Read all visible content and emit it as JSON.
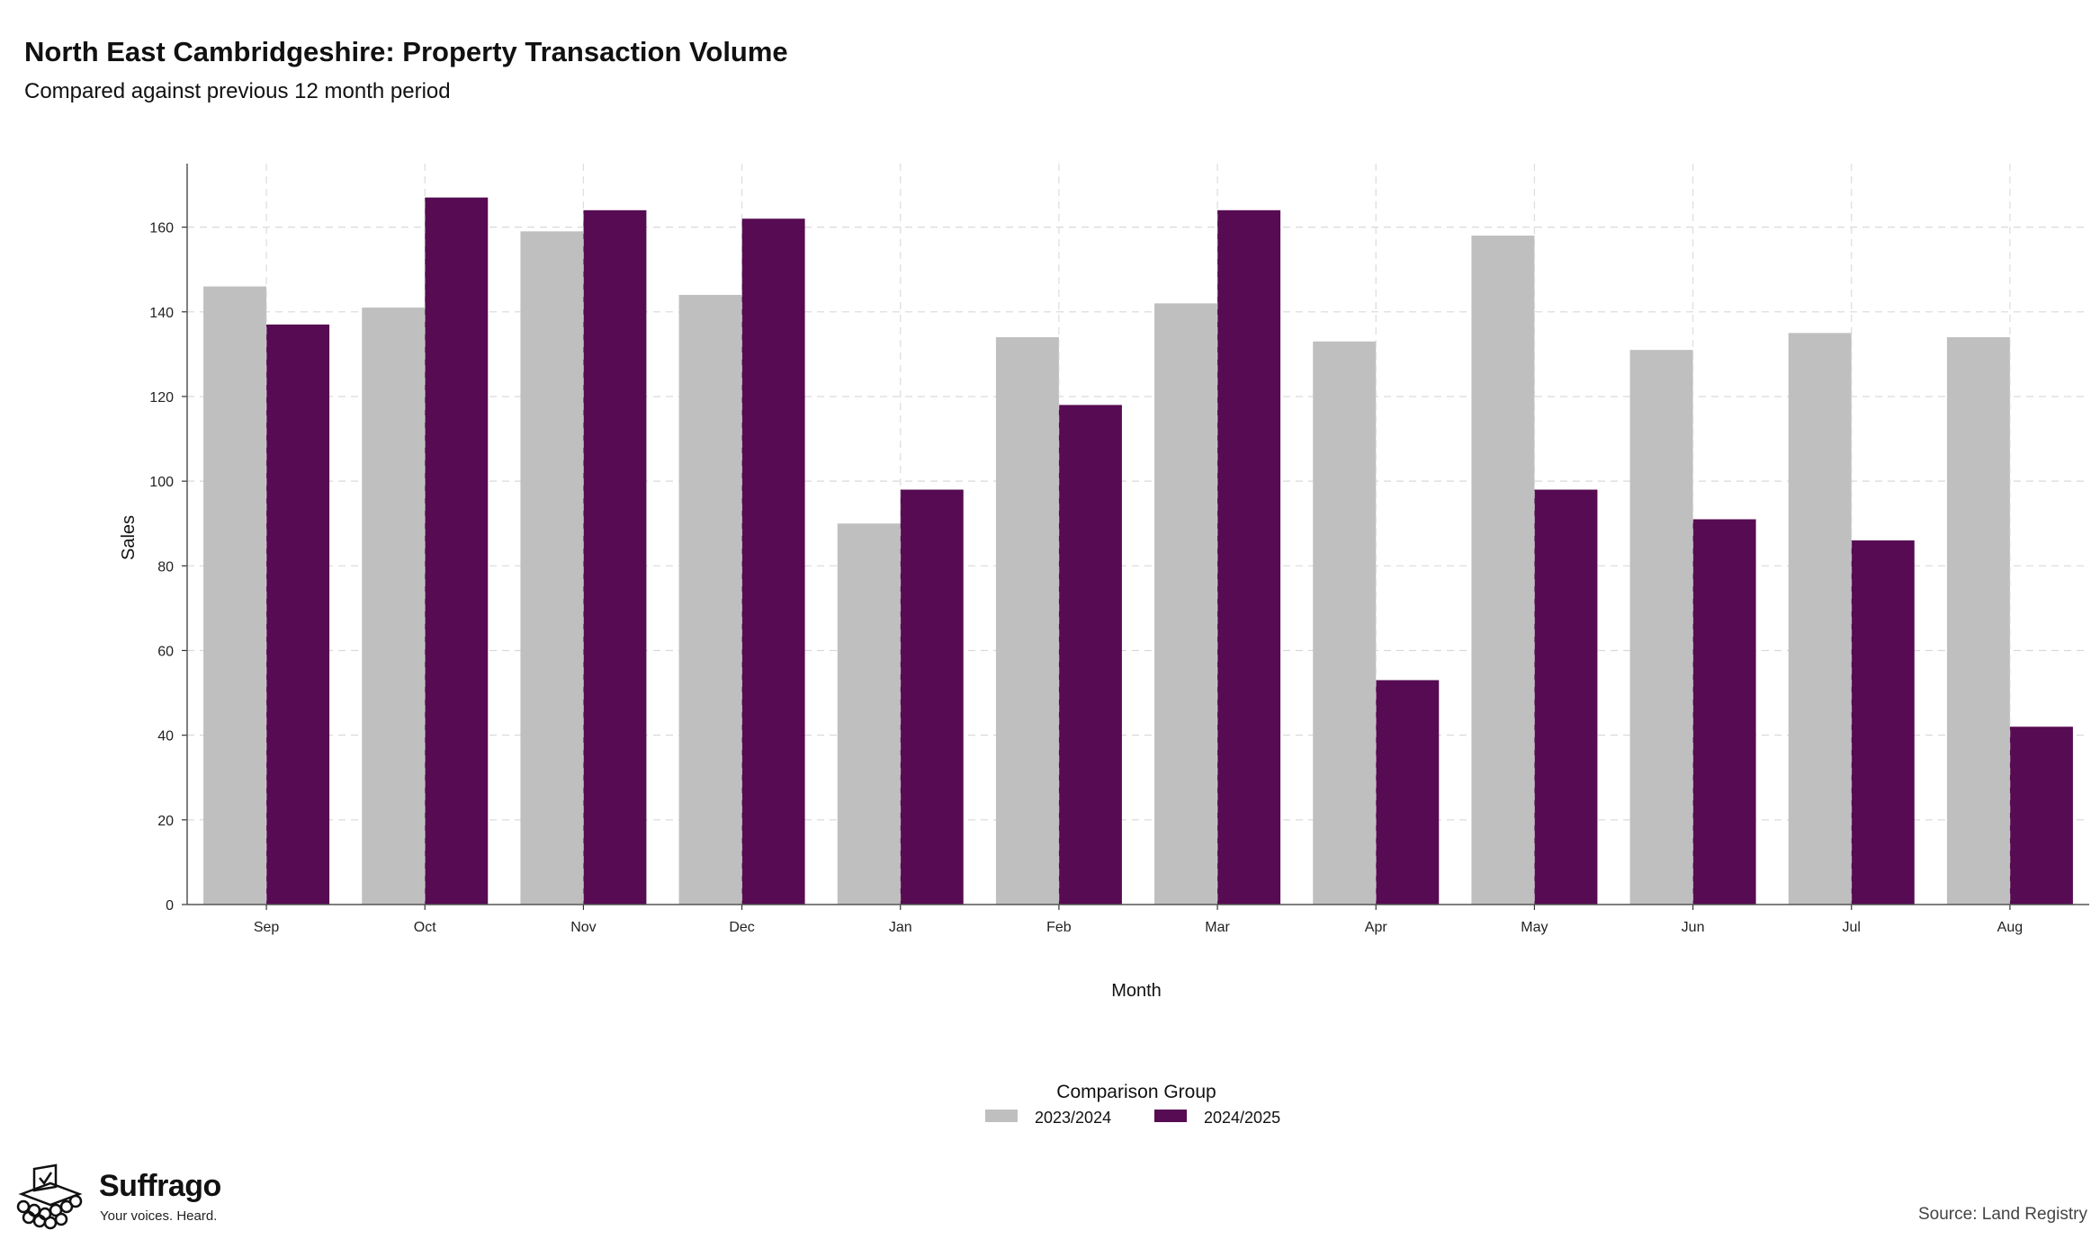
{
  "chart_data": {
    "type": "bar",
    "title": "North East Cambridgeshire: Property Transaction Volume",
    "subtitle": "Compared against previous 12 month period",
    "xlabel": "Month",
    "ylabel": "Sales",
    "categories": [
      "Sep",
      "Oct",
      "Nov",
      "Dec",
      "Jan",
      "Feb",
      "Mar",
      "Apr",
      "May",
      "Jun",
      "Jul",
      "Aug"
    ],
    "series": [
      {
        "name": "2023/2024",
        "color": "#bfbfbf",
        "values": [
          146,
          141,
          159,
          144,
          90,
          134,
          142,
          133,
          158,
          131,
          135,
          134
        ]
      },
      {
        "name": "2024/2025",
        "color": "#560b52",
        "values": [
          137,
          167,
          164,
          162,
          98,
          118,
          164,
          53,
          98,
          91,
          86,
          42
        ]
      }
    ],
    "ylim": [
      0,
      175
    ],
    "yticks": [
      0,
      20,
      40,
      60,
      80,
      100,
      120,
      140,
      160
    ],
    "grid": true,
    "legend": {
      "title": "Comparison Group",
      "placement": "bottom"
    }
  },
  "branding": {
    "name": "Suffrago",
    "tagline": "Your voices. Heard.",
    "logo_icon": "ballot-box-icon"
  },
  "source": "Source: Land Registry"
}
